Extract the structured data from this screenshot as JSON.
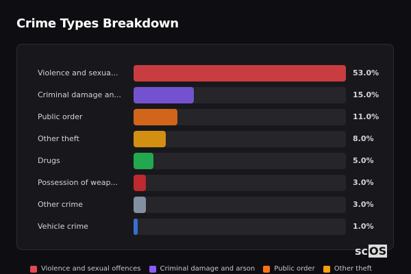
{
  "title": "Crime Types Breakdown",
  "logo": {
    "a": "sc",
    "b": "OS"
  },
  "chart_data": {
    "type": "bar",
    "orientation": "horizontal",
    "categories": [
      "Violence and sexua...",
      "Criminal damage an...",
      "Public order",
      "Other theft",
      "Drugs",
      "Possession of weap...",
      "Other crime",
      "Vehicle crime"
    ],
    "values": [
      53.0,
      15.0,
      11.0,
      8.0,
      5.0,
      3.0,
      3.0,
      1.0
    ],
    "value_labels": [
      "53.0%",
      "15.0%",
      "11.0%",
      "8.0%",
      "5.0%",
      "3.0%",
      "3.0%",
      "1.0%"
    ],
    "colors": [
      "#c93c40",
      "#7452cf",
      "#d0651b",
      "#d38f12",
      "#22a84f",
      "#be2a2d",
      "#8390a2",
      "#3a6fd0"
    ],
    "legend": [
      {
        "label": "Violence and sexual offences",
        "color": "#e5484d"
      },
      {
        "label": "Criminal damage and arson",
        "color": "#8b5cf6"
      },
      {
        "label": "Public order",
        "color": "#f97316"
      },
      {
        "label": "Other theft",
        "color": "#f5a00f"
      }
    ],
    "legend_position": "bottom"
  }
}
